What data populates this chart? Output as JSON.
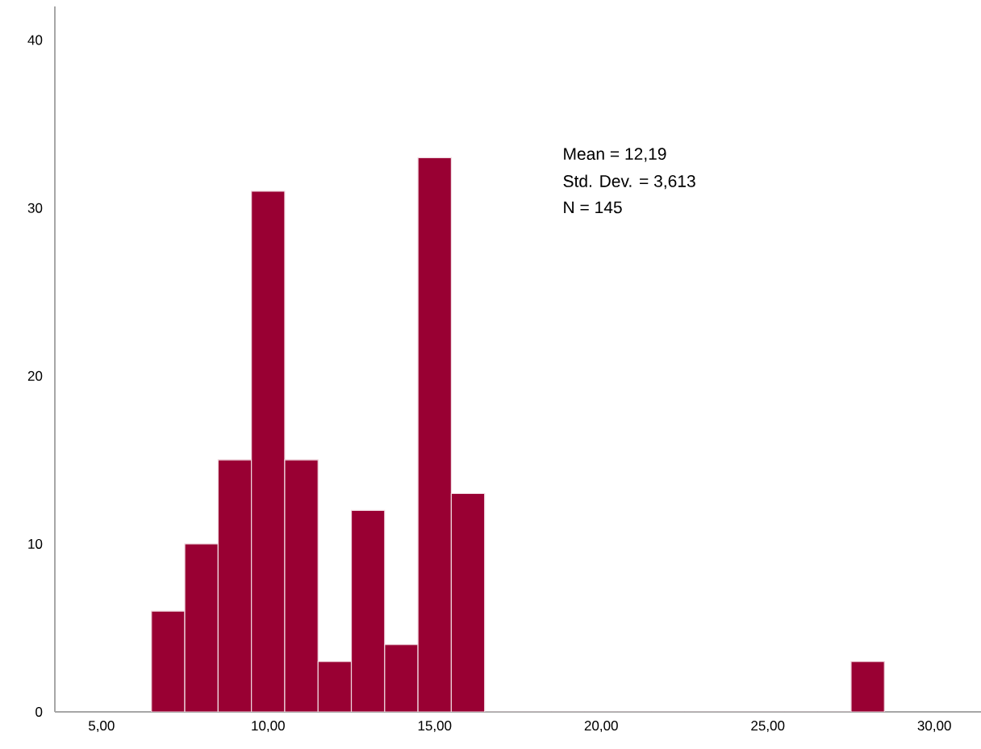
{
  "chart_data": {
    "type": "histogram",
    "bins": [
      6.5,
      7.5,
      8.5,
      9.5,
      10.5,
      11.5,
      12.5,
      13.5,
      14.5,
      15.5,
      16.5,
      17.5,
      18.5,
      19.5,
      20.5,
      21.5,
      22.5,
      23.5,
      24.5,
      25.5,
      26.5,
      27.5,
      28.5
    ],
    "values": [
      6,
      10,
      15,
      31,
      15,
      3,
      12,
      4,
      33,
      13,
      0,
      0,
      0,
      0,
      0,
      0,
      0,
      0,
      0,
      0,
      0,
      3
    ],
    "color": "#990033",
    "xlim": [
      3.6,
      31.4
    ],
    "xticks": [
      {
        "value": 5,
        "label": "5,00"
      },
      {
        "value": 10,
        "label": "10,00"
      },
      {
        "value": 15,
        "label": "15,00"
      },
      {
        "value": 20,
        "label": "20,00"
      },
      {
        "value": 25,
        "label": "25,00"
      },
      {
        "value": 30,
        "label": "30,00"
      }
    ],
    "ylim": [
      0,
      42
    ],
    "yticks": [
      0,
      10,
      20,
      30,
      40
    ],
    "grid": false,
    "annotations": [
      "Mean = 12,19",
      "Std. Dev. = 3,613",
      "N = 145"
    ]
  }
}
